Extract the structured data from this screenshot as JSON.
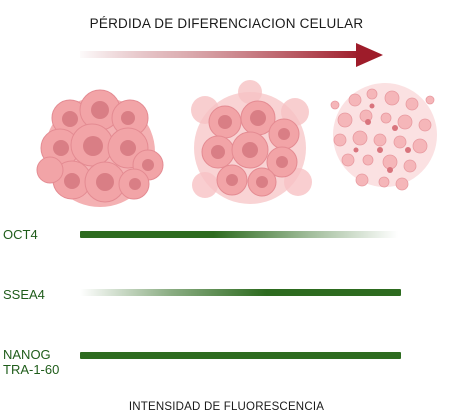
{
  "title": "PÉRDIDA DE DIFERENCIACION CELULAR",
  "footer": "INTENSIDAD DE FLUORESCENCIA",
  "colors": {
    "arrow_dark": "#9e1c2a",
    "bar_green": "#2d6b1f",
    "label_green": "#1f5c1a",
    "cell_fill": "#f2a6a8",
    "nucleus_fill": "#d97e85"
  },
  "markers": [
    {
      "label": "OCT4",
      "profile": "fade-out"
    },
    {
      "label": "SSEA4",
      "profile": "fade-in"
    },
    {
      "label": "NANOG\nTRA-1-60",
      "profile": "solid"
    }
  ],
  "colonies": [
    {
      "stage": "differentiated-colony"
    },
    {
      "stage": "transitioning-colony"
    },
    {
      "stage": "dissociated-colony"
    }
  ]
}
